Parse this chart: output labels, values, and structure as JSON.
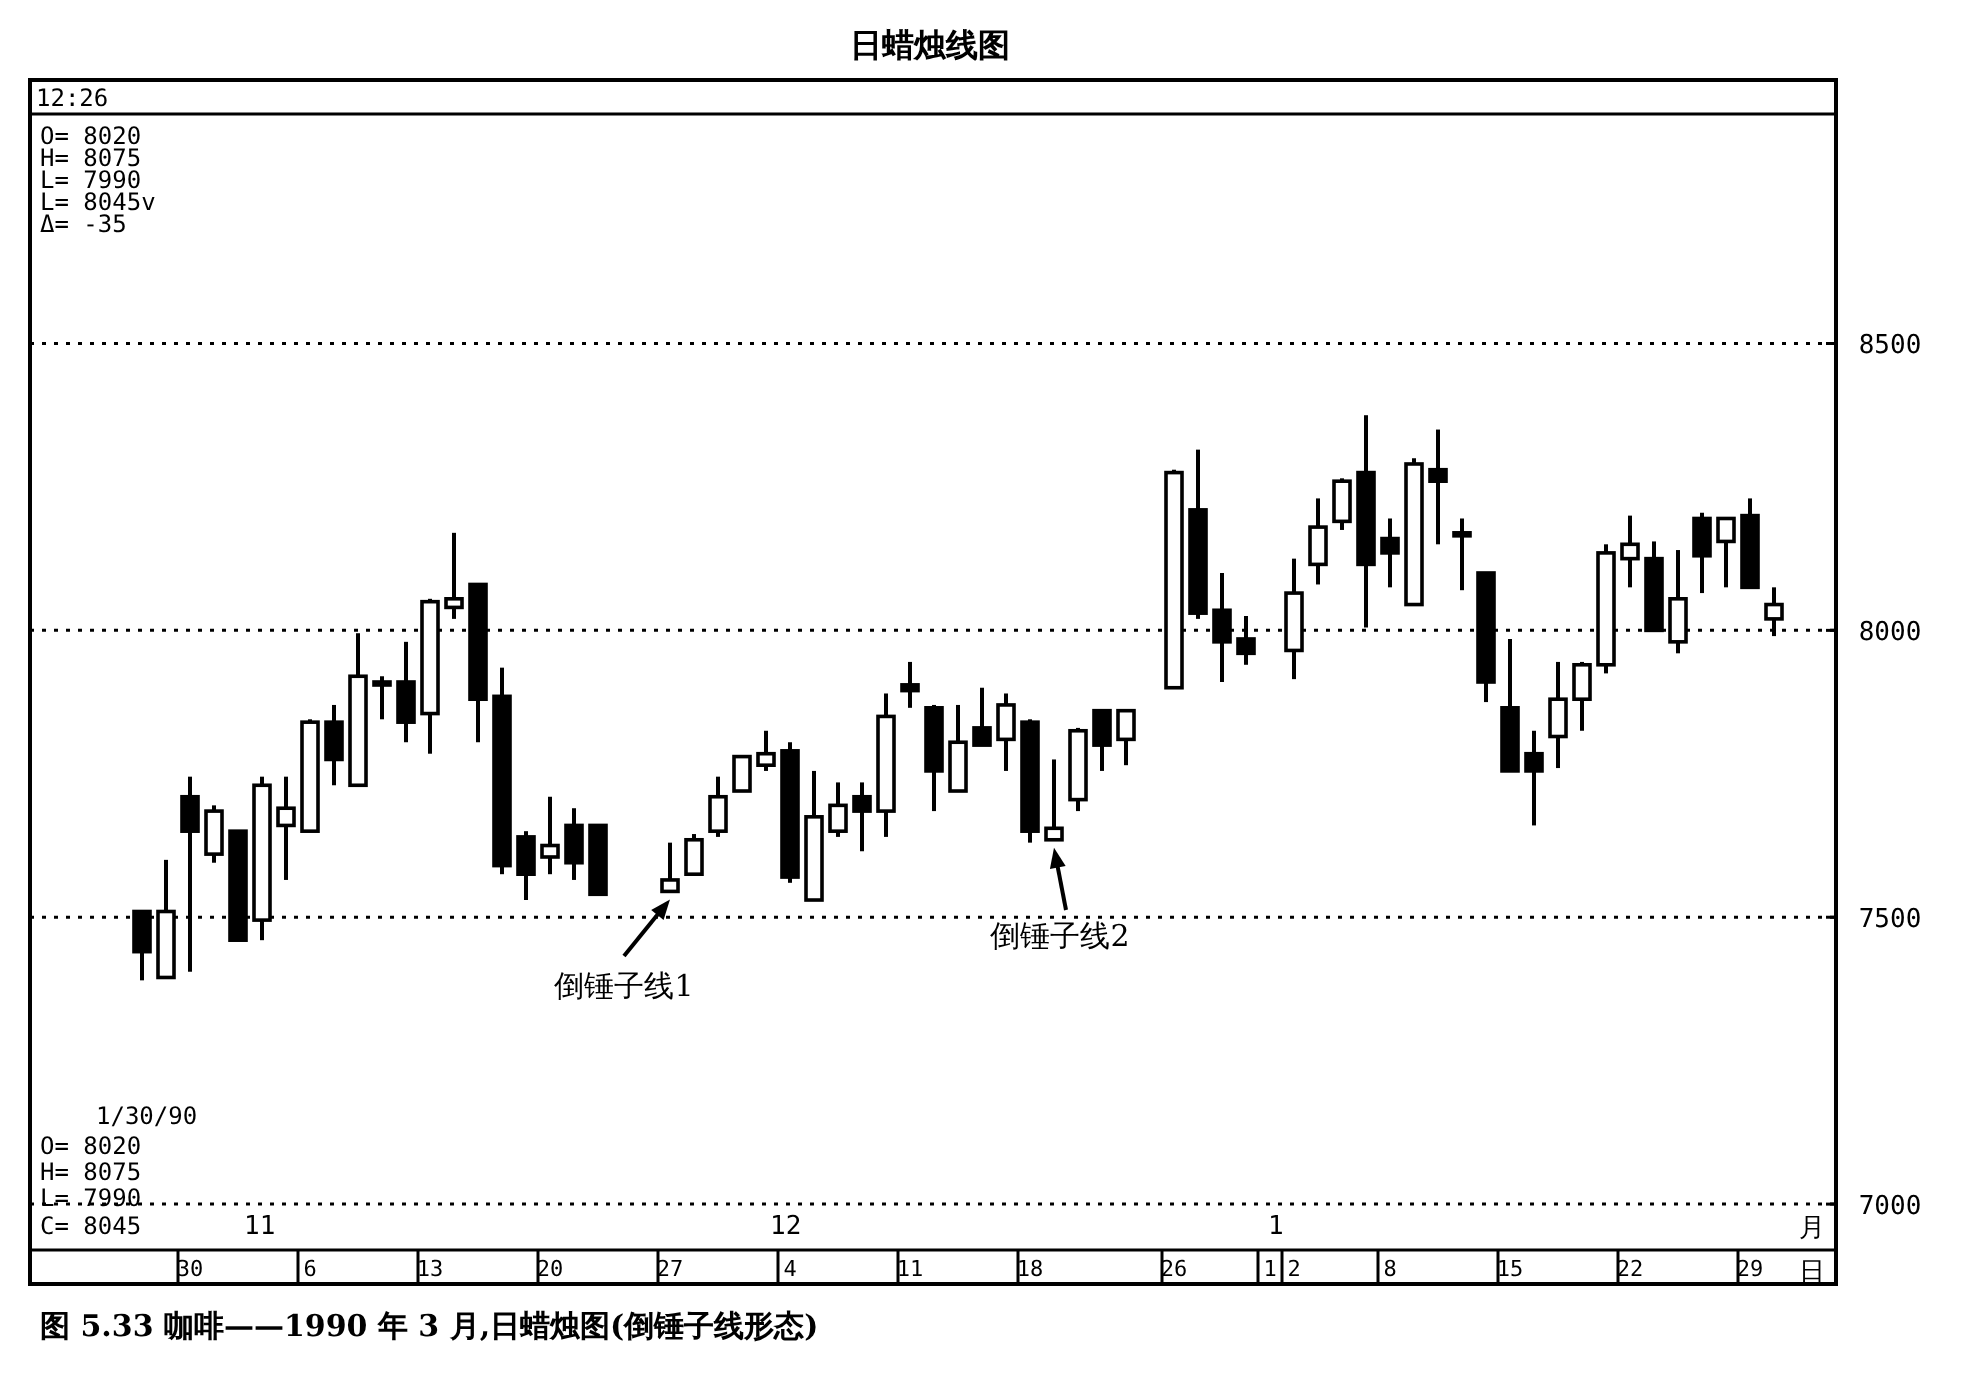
{
  "chart_data": {
    "type": "candlestick",
    "title": "日蜡烛线图",
    "categories": [
      null,
      null,
      "30",
      null,
      null,
      null,
      null,
      "6",
      null,
      null,
      null,
      null,
      "13",
      null,
      null,
      null,
      null,
      "20",
      null,
      null,
      null,
      null,
      "27",
      null,
      null,
      null,
      null,
      "4",
      null,
      null,
      null,
      null,
      "11",
      null,
      null,
      null,
      null,
      "18",
      null,
      null,
      null,
      null,
      null,
      "26",
      null,
      null,
      null,
      "1",
      "2",
      null,
      null,
      null,
      "8",
      null,
      null,
      null,
      null,
      "15",
      null,
      null,
      null,
      null,
      "22",
      null,
      null,
      null,
      null,
      "29",
      null
    ],
    "ohlc": [
      [
        7510,
        7510,
        7390,
        7440
      ],
      [
        7395,
        7600,
        7395,
        7510
      ],
      [
        7710,
        7745,
        7405,
        7650
      ],
      [
        7610,
        7695,
        7595,
        7685
      ],
      [
        7650,
        7650,
        7460,
        7460
      ],
      [
        7495,
        7745,
        7460,
        7730
      ],
      [
        7660,
        7745,
        7565,
        7690
      ],
      [
        7650,
        7845,
        7650,
        7840
      ],
      [
        7840,
        7870,
        7730,
        7775
      ],
      [
        7730,
        7995,
        7730,
        7920
      ],
      [
        7910,
        7920,
        7845,
        7905
      ],
      [
        7910,
        7980,
        7805,
        7840
      ],
      [
        7855,
        8055,
        7785,
        8050
      ],
      [
        8040,
        8170,
        8020,
        8055
      ],
      [
        8080,
        8080,
        7805,
        7880
      ],
      [
        7885,
        7935,
        7575,
        7590
      ],
      [
        7640,
        7650,
        7530,
        7575
      ],
      [
        7605,
        7710,
        7575,
        7625
      ],
      [
        7660,
        7690,
        7565,
        7595
      ],
      [
        7660,
        7660,
        7540,
        7540
      ],
      null,
      null,
      [
        7545,
        7630,
        7545,
        7565
      ],
      [
        7575,
        7645,
        7575,
        7635
      ],
      [
        7650,
        7745,
        7640,
        7710
      ],
      [
        7720,
        7780,
        7720,
        7780
      ],
      [
        7765,
        7825,
        7755,
        7785
      ],
      [
        7790,
        7805,
        7560,
        7570
      ],
      [
        7530,
        7755,
        7530,
        7675
      ],
      [
        7650,
        7735,
        7640,
        7695
      ],
      [
        7710,
        7735,
        7615,
        7685
      ],
      [
        7685,
        7890,
        7640,
        7850
      ],
      [
        7905,
        7945,
        7865,
        7895
      ],
      [
        7865,
        7870,
        7685,
        7755
      ],
      [
        7720,
        7870,
        7720,
        7805
      ],
      [
        7830,
        7900,
        7800,
        7800
      ],
      [
        7810,
        7890,
        7755,
        7870
      ],
      [
        7840,
        7845,
        7630,
        7650
      ],
      [
        7635,
        7775,
        7635,
        7655
      ],
      [
        7705,
        7830,
        7685,
        7825
      ],
      [
        7860,
        7860,
        7755,
        7800
      ],
      [
        7810,
        7860,
        7765,
        7860
      ],
      null,
      [
        7900,
        8280,
        7900,
        8275
      ],
      [
        8210,
        8315,
        8020,
        8030
      ],
      [
        8035,
        8100,
        7910,
        7980
      ],
      [
        7985,
        8025,
        7940,
        7960
      ],
      null,
      [
        7965,
        8125,
        7915,
        8065
      ],
      [
        8115,
        8230,
        8080,
        8180
      ],
      [
        8190,
        8265,
        8175,
        8260
      ],
      [
        8275,
        8375,
        8005,
        8115
      ],
      [
        8160,
        8195,
        8075,
        8135
      ],
      [
        8045,
        8300,
        8045,
        8290
      ],
      [
        8280,
        8350,
        8150,
        8260
      ],
      [
        8170,
        8195,
        8070,
        8165
      ],
      [
        8100,
        8100,
        7875,
        7910
      ],
      [
        7865,
        7985,
        7755,
        7755
      ],
      [
        7785,
        7825,
        7660,
        7755
      ],
      [
        7815,
        7945,
        7760,
        7880
      ],
      [
        7880,
        7945,
        7825,
        7940
      ],
      [
        7940,
        8150,
        7925,
        8135
      ],
      [
        8125,
        8200,
        8075,
        8150
      ],
      [
        8125,
        8155,
        8000,
        8000
      ],
      [
        7980,
        8140,
        7960,
        8055
      ],
      [
        8195,
        8205,
        8065,
        8130
      ],
      [
        8155,
        8195,
        8075,
        8195
      ],
      [
        8200,
        8230,
        8075,
        8075
      ],
      [
        8020,
        8075,
        7990,
        8045
      ]
    ],
    "ylim": [
      6920,
      8900
    ],
    "yticks": [
      7000,
      7500,
      8000,
      8500
    ],
    "grid": "y",
    "annotations": [
      "12:26",
      "O= 8020",
      "H= 8075",
      "L= 7990",
      "L= 8045v",
      "Δ=  -35",
      "1/30/90",
      "O= 8020",
      "H= 8075",
      "L= 7990",
      "C= 8045",
      "11",
      "12",
      "1",
      "月",
      "日",
      {
        "text": "倒锤子线1",
        "x": "27",
        "y": 7545
      },
      {
        "text": "倒锤子线2",
        "y": 7635
      },
      "图 5.33   咖啡——1990 年 3 月,日蜡烛图(倒锤子线形态)"
    ]
  }
}
